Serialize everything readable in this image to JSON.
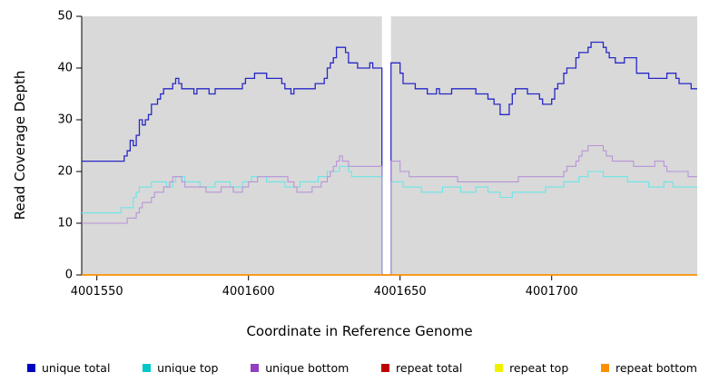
{
  "chart_data": {
    "type": "line",
    "subtype": "step-coverage",
    "xlabel": "Coordinate in Reference Genome",
    "ylabel": "Read Coverage Depth",
    "xlim": [
      4001545,
      4001748
    ],
    "ylim": [
      0,
      50
    ],
    "x_ticks": [
      4001550,
      4001600,
      4001650,
      4001700
    ],
    "y_ticks": [
      0,
      10,
      20,
      30,
      40,
      50
    ],
    "grid": false,
    "legend_position": "bottom",
    "plot_bg": "#d9d9d9",
    "axis_color": "#000000",
    "gap_region": {
      "x_start": 4001644,
      "x_end": 4001647,
      "fill": "#ffffff"
    },
    "series": [
      {
        "name": "unique total",
        "color": "#0000c0",
        "line_color": "#2828c8",
        "line_width": 1.3,
        "points": [
          [
            4001545,
            22
          ],
          [
            4001558,
            22
          ],
          [
            4001559,
            23
          ],
          [
            4001560,
            24
          ],
          [
            4001561,
            26
          ],
          [
            4001562,
            25
          ],
          [
            4001563,
            27
          ],
          [
            4001564,
            30
          ],
          [
            4001565,
            29
          ],
          [
            4001566,
            30
          ],
          [
            4001567,
            31
          ],
          [
            4001568,
            33
          ],
          [
            4001570,
            34
          ],
          [
            4001571,
            35
          ],
          [
            4001572,
            36
          ],
          [
            4001575,
            37
          ],
          [
            4001576,
            38
          ],
          [
            4001577,
            37
          ],
          [
            4001578,
            36
          ],
          [
            4001582,
            35
          ],
          [
            4001583,
            36
          ],
          [
            4001587,
            35
          ],
          [
            4001589,
            36
          ],
          [
            4001597,
            36
          ],
          [
            4001598,
            37
          ],
          [
            4001599,
            38
          ],
          [
            4001602,
            39
          ],
          [
            4001605,
            39
          ],
          [
            4001606,
            38
          ],
          [
            4001610,
            38
          ],
          [
            4001611,
            37
          ],
          [
            4001612,
            36
          ],
          [
            4001614,
            35
          ],
          [
            4001615,
            36
          ],
          [
            4001621,
            36
          ],
          [
            4001622,
            37
          ],
          [
            4001625,
            38
          ],
          [
            4001626,
            40
          ],
          [
            4001627,
            41
          ],
          [
            4001628,
            42
          ],
          [
            4001629,
            44
          ],
          [
            4001631,
            44
          ],
          [
            4001632,
            43
          ],
          [
            4001633,
            41
          ],
          [
            4001635,
            41
          ],
          [
            4001636,
            40
          ],
          [
            4001639,
            40
          ],
          [
            4001640,
            41
          ],
          [
            4001641,
            40
          ],
          [
            4001644,
            0
          ],
          [
            4001647,
            0
          ],
          [
            4001647,
            41
          ],
          [
            4001649,
            41
          ],
          [
            4001650,
            39
          ],
          [
            4001651,
            37
          ],
          [
            4001654,
            37
          ],
          [
            4001655,
            36
          ],
          [
            4001658,
            36
          ],
          [
            4001659,
            35
          ],
          [
            4001661,
            35
          ],
          [
            4001662,
            36
          ],
          [
            4001663,
            35
          ],
          [
            4001666,
            35
          ],
          [
            4001667,
            36
          ],
          [
            4001673,
            36
          ],
          [
            4001675,
            35
          ],
          [
            4001678,
            35
          ],
          [
            4001679,
            34
          ],
          [
            4001681,
            33
          ],
          [
            4001683,
            31
          ],
          [
            4001685,
            31
          ],
          [
            4001686,
            33
          ],
          [
            4001687,
            35
          ],
          [
            4001688,
            36
          ],
          [
            4001691,
            36
          ],
          [
            4001692,
            35
          ],
          [
            4001695,
            35
          ],
          [
            4001696,
            34
          ],
          [
            4001697,
            33
          ],
          [
            4001699,
            33
          ],
          [
            4001700,
            34
          ],
          [
            4001701,
            36
          ],
          [
            4001702,
            37
          ],
          [
            4001703,
            37
          ],
          [
            4001704,
            39
          ],
          [
            4001705,
            40
          ],
          [
            4001707,
            40
          ],
          [
            4001708,
            42
          ],
          [
            4001709,
            43
          ],
          [
            4001711,
            43
          ],
          [
            4001712,
            44
          ],
          [
            4001713,
            45
          ],
          [
            4001716,
            45
          ],
          [
            4001717,
            44
          ],
          [
            4001718,
            43
          ],
          [
            4001719,
            42
          ],
          [
            4001721,
            41
          ],
          [
            4001723,
            41
          ],
          [
            4001724,
            42
          ],
          [
            4001727,
            42
          ],
          [
            4001728,
            39
          ],
          [
            4001731,
            39
          ],
          [
            4001732,
            38
          ],
          [
            4001737,
            38
          ],
          [
            4001738,
            39
          ],
          [
            4001740,
            39
          ],
          [
            4001741,
            38
          ],
          [
            4001742,
            37
          ],
          [
            4001745,
            37
          ],
          [
            4001746,
            36
          ],
          [
            4001748,
            36
          ]
        ]
      },
      {
        "name": "unique top",
        "color": "#00c8c8",
        "line_color": "#6ae6e6",
        "line_width": 1.1,
        "points": [
          [
            4001545,
            12
          ],
          [
            4001557,
            12
          ],
          [
            4001558,
            13
          ],
          [
            4001561,
            13
          ],
          [
            4001562,
            15
          ],
          [
            4001563,
            16
          ],
          [
            4001564,
            17
          ],
          [
            4001567,
            17
          ],
          [
            4001568,
            18
          ],
          [
            4001572,
            18
          ],
          [
            4001573,
            17
          ],
          [
            4001575,
            18
          ],
          [
            4001576,
            19
          ],
          [
            4001578,
            19
          ],
          [
            4001579,
            18
          ],
          [
            4001583,
            18
          ],
          [
            4001584,
            17
          ],
          [
            4001588,
            17
          ],
          [
            4001589,
            18
          ],
          [
            4001593,
            18
          ],
          [
            4001594,
            17
          ],
          [
            4001597,
            17
          ],
          [
            4001598,
            18
          ],
          [
            4001600,
            18
          ],
          [
            4001601,
            19
          ],
          [
            4001605,
            19
          ],
          [
            4001606,
            18
          ],
          [
            4001611,
            18
          ],
          [
            4001612,
            17
          ],
          [
            4001616,
            17
          ],
          [
            4001617,
            18
          ],
          [
            4001622,
            18
          ],
          [
            4001623,
            19
          ],
          [
            4001625,
            19
          ],
          [
            4001626,
            20
          ],
          [
            4001629,
            20
          ],
          [
            4001630,
            21
          ],
          [
            4001632,
            21
          ],
          [
            4001633,
            20
          ],
          [
            4001634,
            19
          ],
          [
            4001641,
            19
          ],
          [
            4001644,
            0
          ],
          [
            4001647,
            0
          ],
          [
            4001647,
            18
          ],
          [
            4001650,
            18
          ],
          [
            4001651,
            17
          ],
          [
            4001656,
            17
          ],
          [
            4001657,
            16
          ],
          [
            4001663,
            16
          ],
          [
            4001664,
            17
          ],
          [
            4001669,
            17
          ],
          [
            4001670,
            16
          ],
          [
            4001674,
            16
          ],
          [
            4001675,
            17
          ],
          [
            4001678,
            17
          ],
          [
            4001679,
            16
          ],
          [
            4001682,
            16
          ],
          [
            4001683,
            15
          ],
          [
            4001686,
            15
          ],
          [
            4001687,
            16
          ],
          [
            4001697,
            16
          ],
          [
            4001698,
            17
          ],
          [
            4001703,
            17
          ],
          [
            4001704,
            18
          ],
          [
            4001708,
            18
          ],
          [
            4001709,
            19
          ],
          [
            4001711,
            19
          ],
          [
            4001712,
            20
          ],
          [
            4001716,
            20
          ],
          [
            4001717,
            19
          ],
          [
            4001724,
            19
          ],
          [
            4001725,
            18
          ],
          [
            4001731,
            18
          ],
          [
            4001732,
            17
          ],
          [
            4001736,
            17
          ],
          [
            4001737,
            18
          ],
          [
            4001739,
            18
          ],
          [
            4001740,
            17
          ],
          [
            4001748,
            17
          ]
        ]
      },
      {
        "name": "unique bottom",
        "color": "#9040c0",
        "line_color": "#b894d8",
        "line_width": 1.1,
        "points": [
          [
            4001545,
            10
          ],
          [
            4001559,
            10
          ],
          [
            4001560,
            11
          ],
          [
            4001562,
            11
          ],
          [
            4001563,
            12
          ],
          [
            4001564,
            13
          ],
          [
            4001565,
            14
          ],
          [
            4001567,
            14
          ],
          [
            4001568,
            15
          ],
          [
            4001569,
            16
          ],
          [
            4001571,
            16
          ],
          [
            4001572,
            17
          ],
          [
            4001574,
            18
          ],
          [
            4001575,
            19
          ],
          [
            4001577,
            19
          ],
          [
            4001578,
            18
          ],
          [
            4001579,
            17
          ],
          [
            4001585,
            17
          ],
          [
            4001586,
            16
          ],
          [
            4001590,
            16
          ],
          [
            4001591,
            17
          ],
          [
            4001594,
            17
          ],
          [
            4001595,
            16
          ],
          [
            4001597,
            16
          ],
          [
            4001598,
            17
          ],
          [
            4001600,
            18
          ],
          [
            4001602,
            18
          ],
          [
            4001603,
            19
          ],
          [
            4001612,
            19
          ],
          [
            4001613,
            18
          ],
          [
            4001615,
            17
          ],
          [
            4001616,
            16
          ],
          [
            4001620,
            16
          ],
          [
            4001621,
            17
          ],
          [
            4001623,
            17
          ],
          [
            4001624,
            18
          ],
          [
            4001626,
            19
          ],
          [
            4001627,
            20
          ],
          [
            4001628,
            21
          ],
          [
            4001629,
            22
          ],
          [
            4001630,
            23
          ],
          [
            4001631,
            22
          ],
          [
            4001633,
            21
          ],
          [
            4001640,
            21
          ],
          [
            4001644,
            0
          ],
          [
            4001647,
            0
          ],
          [
            4001647,
            22
          ],
          [
            4001649,
            22
          ],
          [
            4001650,
            20
          ],
          [
            4001652,
            20
          ],
          [
            4001653,
            19
          ],
          [
            4001668,
            19
          ],
          [
            4001669,
            18
          ],
          [
            4001688,
            18
          ],
          [
            4001689,
            19
          ],
          [
            4001703,
            19
          ],
          [
            4001704,
            20
          ],
          [
            4001705,
            21
          ],
          [
            4001707,
            21
          ],
          [
            4001708,
            22
          ],
          [
            4001709,
            23
          ],
          [
            4001710,
            24
          ],
          [
            4001712,
            25
          ],
          [
            4001716,
            25
          ],
          [
            4001717,
            24
          ],
          [
            4001718,
            23
          ],
          [
            4001720,
            22
          ],
          [
            4001726,
            22
          ],
          [
            4001727,
            21
          ],
          [
            4001733,
            21
          ],
          [
            4001734,
            22
          ],
          [
            4001736,
            22
          ],
          [
            4001737,
            21
          ],
          [
            4001738,
            20
          ],
          [
            4001744,
            20
          ],
          [
            4001745,
            19
          ],
          [
            4001748,
            19
          ]
        ]
      },
      {
        "name": "repeat total",
        "color": "#c00000",
        "line_color": "#c00000",
        "line_width": 1.2,
        "points": [
          [
            4001545,
            0
          ],
          [
            4001748,
            0
          ]
        ]
      },
      {
        "name": "repeat top",
        "color": "#f0f000",
        "line_color": "#f0f000",
        "line_width": 1.2,
        "points": [
          [
            4001545,
            0
          ],
          [
            4001748,
            0
          ]
        ]
      },
      {
        "name": "repeat bottom",
        "color": "#ff9000",
        "line_color": "#ff9000",
        "line_width": 1.5,
        "points": [
          [
            4001545,
            0
          ],
          [
            4001748,
            0
          ]
        ]
      }
    ]
  }
}
